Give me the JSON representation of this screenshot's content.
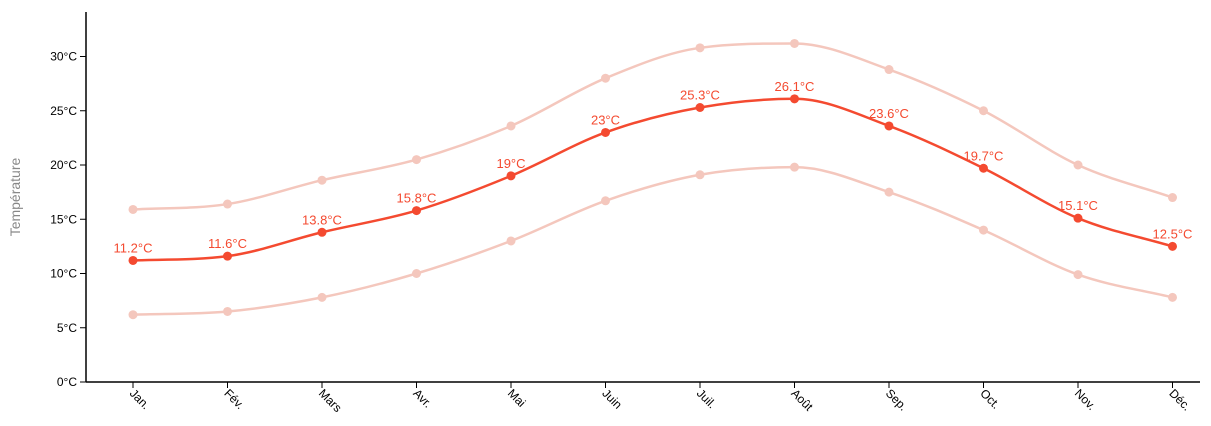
{
  "chart_data": {
    "type": "line",
    "title": "",
    "xlabel": "",
    "ylabel": "Température",
    "categories": [
      "Jan.",
      "Fév.",
      "Mars",
      "Avr.",
      "Mai",
      "Juin",
      "Juil.",
      "Août",
      "Sep.",
      "Oct.",
      "Nov.",
      "Déc."
    ],
    "ylim": [
      0,
      34
    ],
    "yticks": [
      0,
      5,
      10,
      15,
      20,
      25,
      30
    ],
    "ytick_labels": [
      "0°C",
      "5°C",
      "10°C",
      "15°C",
      "20°C",
      "25°C",
      "30°C"
    ],
    "grid": false,
    "legend": "none",
    "unit_suffix": "°C",
    "series": [
      {
        "role": "max",
        "color": "#f4c7bd",
        "values": [
          15.9,
          16.4,
          18.6,
          20.5,
          23.6,
          28.0,
          30.8,
          31.2,
          28.8,
          25.0,
          20.0,
          17.0
        ],
        "show_labels": false
      },
      {
        "role": "mean",
        "color": "#f44a30",
        "values": [
          11.2,
          11.6,
          13.8,
          15.8,
          19,
          23,
          25.3,
          26.1,
          23.6,
          19.7,
          15.1,
          12.5
        ],
        "labels": [
          "11.2°C",
          "11.6°C",
          "13.8°C",
          "15.8°C",
          "19°C",
          "23°C",
          "25.3°C",
          "26.1°C",
          "23.6°C",
          "19.7°C",
          "15.1°C",
          "12.5°C"
        ],
        "show_labels": true
      },
      {
        "role": "min",
        "color": "#f4c7bd",
        "values": [
          6.2,
          6.5,
          7.8,
          10.0,
          13.0,
          16.7,
          19.1,
          19.8,
          17.5,
          14.0,
          9.9,
          7.8
        ],
        "show_labels": false
      }
    ]
  }
}
